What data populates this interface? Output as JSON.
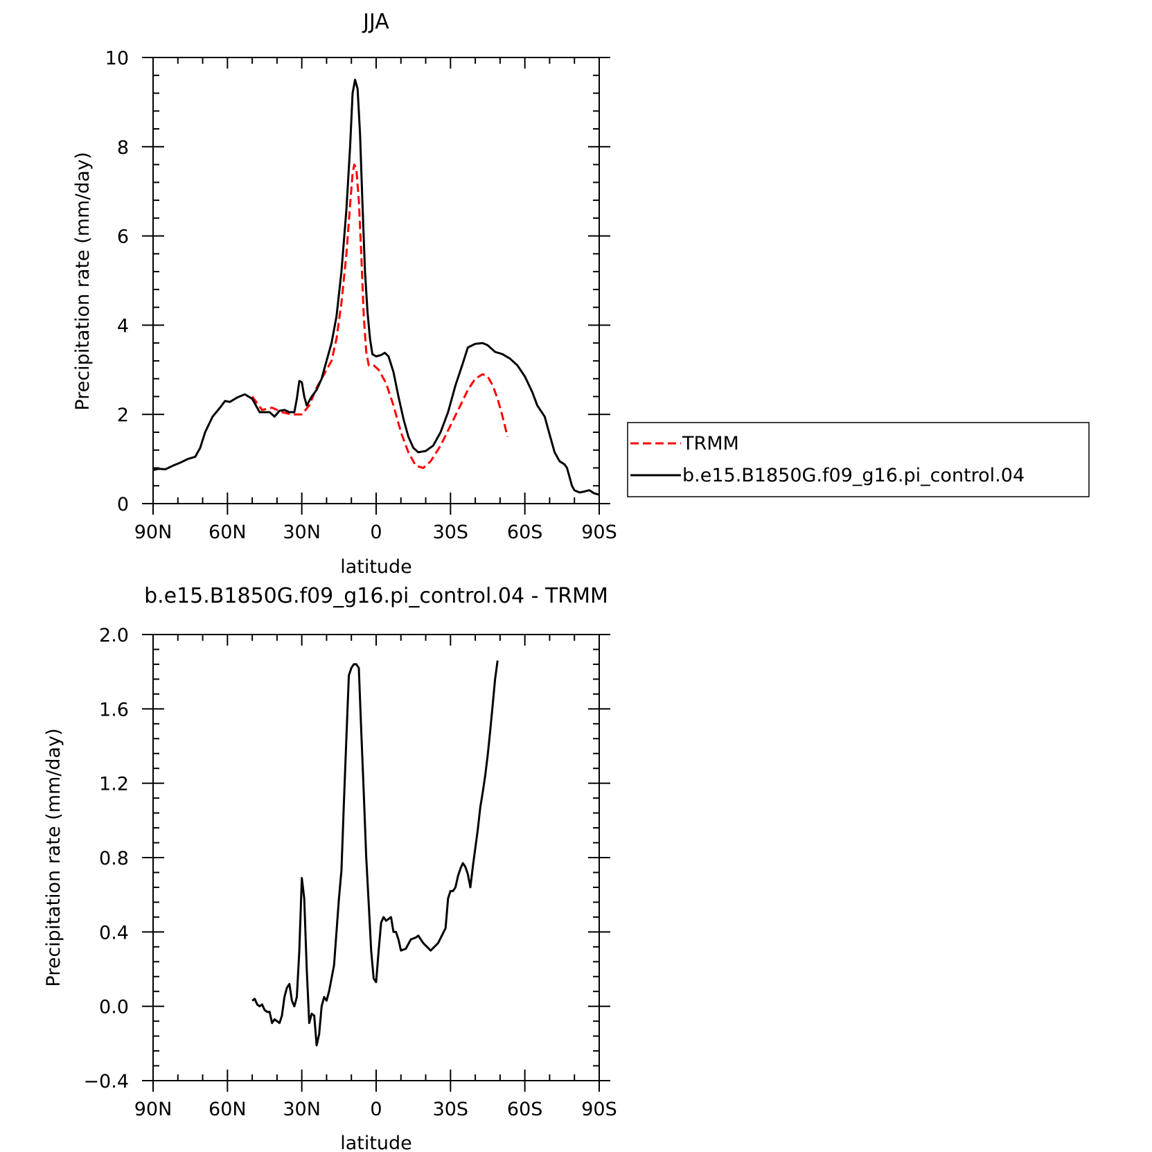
{
  "colors": {
    "model_line": "#000000",
    "obs_line": "#ff0000",
    "axes": "#000000",
    "background": "#ffffff"
  },
  "chart_data": [
    {
      "type": "line",
      "title": "JJA",
      "xlabel": "latitude",
      "ylabel": "Precipitation rate (mm/day)",
      "xlim": [
        90,
        -90
      ],
      "ylim": [
        0,
        10
      ],
      "x_tick_values": [
        90,
        60,
        30,
        0,
        -30,
        -60,
        -90
      ],
      "x_tick_labels": [
        "90N",
        "60N",
        "30N",
        "0",
        "30S",
        "60S",
        "90S"
      ],
      "y_tick_values": [
        0,
        2,
        4,
        6,
        8,
        10
      ],
      "y_tick_labels": [
        "0",
        "2",
        "4",
        "6",
        "8",
        "10"
      ],
      "grid": false,
      "legend_position": "right, outside plot",
      "series": [
        {
          "name": "TRMM",
          "color": "#ff0000",
          "dash": "dashed",
          "points": [
            [
              50,
              2.4
            ],
            [
              46,
              2.1
            ],
            [
              42,
              2.15
            ],
            [
              38,
              2.05
            ],
            [
              34,
              2.0
            ],
            [
              30,
              2.0
            ],
            [
              27,
              2.2
            ],
            [
              24,
              2.6
            ],
            [
              21,
              2.9
            ],
            [
              18,
              3.2
            ],
            [
              16,
              3.7
            ],
            [
              14,
              4.5
            ],
            [
              12,
              5.6
            ],
            [
              10.5,
              6.7
            ],
            [
              9.5,
              7.4
            ],
            [
              8.8,
              7.6
            ],
            [
              8,
              7.5
            ],
            [
              7,
              6.8
            ],
            [
              6,
              5.6
            ],
            [
              5,
              4.2
            ],
            [
              4,
              3.4
            ],
            [
              3,
              3.1
            ],
            [
              1,
              3.1
            ],
            [
              -1,
              3.0
            ],
            [
              -4,
              2.7
            ],
            [
              -7,
              2.2
            ],
            [
              -10,
              1.6
            ],
            [
              -13,
              1.15
            ],
            [
              -16,
              0.85
            ],
            [
              -19,
              0.8
            ],
            [
              -22,
              0.95
            ],
            [
              -26,
              1.3
            ],
            [
              -30,
              1.75
            ],
            [
              -34,
              2.2
            ],
            [
              -37,
              2.55
            ],
            [
              -40,
              2.8
            ],
            [
              -43,
              2.9
            ],
            [
              -45,
              2.85
            ],
            [
              -47,
              2.65
            ],
            [
              -49,
              2.35
            ],
            [
              -51,
              1.95
            ],
            [
              -53,
              1.5
            ]
          ]
        },
        {
          "name": "b.e15.B1850G.f09_g16.pi_control.04",
          "color": "#000000",
          "dash": "solid",
          "points": [
            [
              90,
              0.75
            ],
            [
              88,
              0.78
            ],
            [
              85,
              0.77
            ],
            [
              82,
              0.85
            ],
            [
              79,
              0.92
            ],
            [
              76,
              1.0
            ],
            [
              73,
              1.05
            ],
            [
              71,
              1.25
            ],
            [
              69,
              1.6
            ],
            [
              66,
              1.95
            ],
            [
              63,
              2.15
            ],
            [
              61,
              2.3
            ],
            [
              59,
              2.28
            ],
            [
              56,
              2.38
            ],
            [
              53,
              2.45
            ],
            [
              50,
              2.35
            ],
            [
              47,
              2.05
            ],
            [
              45,
              2.05
            ],
            [
              43,
              2.05
            ],
            [
              41,
              1.95
            ],
            [
              39,
              2.08
            ],
            [
              37,
              2.1
            ],
            [
              35,
              2.05
            ],
            [
              33,
              2.05
            ],
            [
              32,
              2.35
            ],
            [
              31,
              2.75
            ],
            [
              30,
              2.72
            ],
            [
              29,
              2.4
            ],
            [
              28,
              2.2
            ],
            [
              26,
              2.4
            ],
            [
              24,
              2.55
            ],
            [
              22,
              2.8
            ],
            [
              20,
              3.2
            ],
            [
              18,
              3.6
            ],
            [
              16,
              4.2
            ],
            [
              14,
              5.2
            ],
            [
              12,
              6.6
            ],
            [
              10.5,
              8.0
            ],
            [
              9.5,
              9.2
            ],
            [
              8.5,
              9.5
            ],
            [
              7.5,
              9.3
            ],
            [
              6.5,
              8.3
            ],
            [
              5.5,
              6.7
            ],
            [
              4.5,
              5.2
            ],
            [
              3.5,
              4.3
            ],
            [
              2.5,
              3.7
            ],
            [
              1.5,
              3.35
            ],
            [
              0,
              3.3
            ],
            [
              -2,
              3.33
            ],
            [
              -3.5,
              3.38
            ],
            [
              -5,
              3.3
            ],
            [
              -7,
              2.95
            ],
            [
              -9,
              2.4
            ],
            [
              -11,
              1.9
            ],
            [
              -13,
              1.5
            ],
            [
              -15,
              1.25
            ],
            [
              -17,
              1.15
            ],
            [
              -20,
              1.18
            ],
            [
              -23,
              1.3
            ],
            [
              -26,
              1.6
            ],
            [
              -29,
              2.05
            ],
            [
              -32,
              2.65
            ],
            [
              -35,
              3.15
            ],
            [
              -37,
              3.5
            ],
            [
              -40,
              3.58
            ],
            [
              -43,
              3.6
            ],
            [
              -45,
              3.55
            ],
            [
              -48,
              3.4
            ],
            [
              -51,
              3.35
            ],
            [
              -54,
              3.25
            ],
            [
              -57,
              3.1
            ],
            [
              -60,
              2.85
            ],
            [
              -63,
              2.5
            ],
            [
              -65,
              2.2
            ],
            [
              -68,
              1.95
            ],
            [
              -70,
              1.55
            ],
            [
              -72,
              1.15
            ],
            [
              -74,
              0.95
            ],
            [
              -76,
              0.88
            ],
            [
              -77,
              0.8
            ],
            [
              -78,
              0.6
            ],
            [
              -79,
              0.4
            ],
            [
              -80,
              0.3
            ],
            [
              -82,
              0.25
            ],
            [
              -84,
              0.27
            ],
            [
              -86,
              0.3
            ],
            [
              -88,
              0.23
            ],
            [
              -90,
              0.2
            ]
          ]
        }
      ]
    },
    {
      "type": "line",
      "title": "b.e15.B1850G.f09_g16.pi_control.04 - TRMM",
      "xlabel": "latitude",
      "ylabel": "Precipitation rate (mm/day)",
      "xlim": [
        90,
        -90
      ],
      "ylim": [
        -0.4,
        2.0
      ],
      "x_tick_values": [
        90,
        60,
        30,
        0,
        -30,
        -60,
        -90
      ],
      "x_tick_labels": [
        "90N",
        "60N",
        "30N",
        "0",
        "30S",
        "60S",
        "90S"
      ],
      "y_tick_values": [
        -0.4,
        0.0,
        0.4,
        0.8,
        1.2,
        1.6,
        2.0
      ],
      "y_tick_labels": [
        "−0.4",
        "0.0",
        "0.4",
        "0.8",
        "1.2",
        "1.6",
        "2.0"
      ],
      "grid": false,
      "series": [
        {
          "color": "#000000",
          "dash": "solid",
          "points": [
            [
              50,
              0.03
            ],
            [
              49,
              0.04
            ],
            [
              48,
              0.01
            ],
            [
              47,
              0.0
            ],
            [
              46,
              0.01
            ],
            [
              45,
              -0.02
            ],
            [
              44,
              -0.03
            ],
            [
              43,
              -0.03
            ],
            [
              42,
              -0.09
            ],
            [
              41,
              -0.07
            ],
            [
              40,
              -0.08
            ],
            [
              39,
              -0.09
            ],
            [
              38,
              -0.05
            ],
            [
              37,
              0.05
            ],
            [
              36,
              0.1
            ],
            [
              35,
              0.12
            ],
            [
              34,
              0.03
            ],
            [
              33,
              0.0
            ],
            [
              32,
              0.05
            ],
            [
              31,
              0.3
            ],
            [
              30,
              0.69
            ],
            [
              29,
              0.58
            ],
            [
              28,
              0.2
            ],
            [
              27,
              -0.09
            ],
            [
              26,
              -0.04
            ],
            [
              25,
              -0.05
            ],
            [
              24,
              -0.21
            ],
            [
              23,
              -0.15
            ],
            [
              22,
              0.0
            ],
            [
              21,
              0.05
            ],
            [
              20,
              0.03
            ],
            [
              19,
              0.08
            ],
            [
              17,
              0.22
            ],
            [
              15,
              0.58
            ],
            [
              14,
              0.73
            ],
            [
              13,
              1.1
            ],
            [
              12,
              1.45
            ],
            [
              11,
              1.78
            ],
            [
              10,
              1.82
            ],
            [
              9,
              1.84
            ],
            [
              8,
              1.84
            ],
            [
              7,
              1.82
            ],
            [
              6,
              1.48
            ],
            [
              5,
              1.15
            ],
            [
              4,
              0.8
            ],
            [
              3,
              0.55
            ],
            [
              2,
              0.3
            ],
            [
              1,
              0.15
            ],
            [
              0,
              0.13
            ],
            [
              -1,
              0.3
            ],
            [
              -2,
              0.45
            ],
            [
              -3,
              0.48
            ],
            [
              -4,
              0.46
            ],
            [
              -5,
              0.47
            ],
            [
              -6,
              0.48
            ],
            [
              -7,
              0.4
            ],
            [
              -8,
              0.4
            ],
            [
              -9,
              0.36
            ],
            [
              -10,
              0.3
            ],
            [
              -12,
              0.31
            ],
            [
              -14,
              0.36
            ],
            [
              -16,
              0.37
            ],
            [
              -17,
              0.38
            ],
            [
              -19,
              0.34
            ],
            [
              -22,
              0.3
            ],
            [
              -25,
              0.34
            ],
            [
              -28,
              0.42
            ],
            [
              -29,
              0.58
            ],
            [
              -30,
              0.62
            ],
            [
              -31,
              0.62
            ],
            [
              -32,
              0.64
            ],
            [
              -33,
              0.7
            ],
            [
              -34,
              0.74
            ],
            [
              -35,
              0.77
            ],
            [
              -36,
              0.75
            ],
            [
              -37,
              0.71
            ],
            [
              -38,
              0.64
            ],
            [
              -39,
              0.75
            ],
            [
              -40,
              0.85
            ],
            [
              -41,
              0.95
            ],
            [
              -42,
              1.07
            ],
            [
              -43,
              1.15
            ],
            [
              -44,
              1.24
            ],
            [
              -45,
              1.35
            ],
            [
              -46,
              1.48
            ],
            [
              -47,
              1.62
            ],
            [
              -48,
              1.76
            ],
            [
              -49,
              1.86
            ]
          ]
        }
      ]
    }
  ]
}
